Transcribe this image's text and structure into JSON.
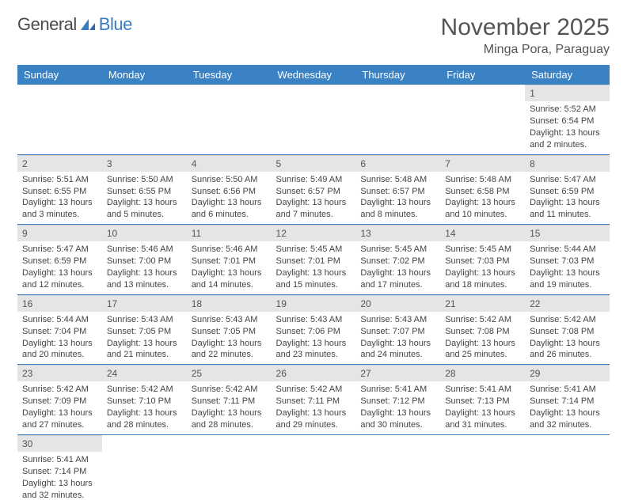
{
  "brand": {
    "part1": "General",
    "part2": "Blue",
    "text_color": "#4a4a4a",
    "accent_color": "#3a7bbf"
  },
  "title": "November 2025",
  "location": "Minga Pora, Paraguay",
  "header_bg": "#3a82c4",
  "header_fg": "#ffffff",
  "daynum_bg": "#e5e5e5",
  "cell_border": "#3a82c4",
  "weekdays": [
    "Sunday",
    "Monday",
    "Tuesday",
    "Wednesday",
    "Thursday",
    "Friday",
    "Saturday"
  ],
  "leading_blanks": 6,
  "days": [
    {
      "n": 1,
      "sunrise": "5:52 AM",
      "sunset": "6:54 PM",
      "daylight": "13 hours and 2 minutes."
    },
    {
      "n": 2,
      "sunrise": "5:51 AM",
      "sunset": "6:55 PM",
      "daylight": "13 hours and 3 minutes."
    },
    {
      "n": 3,
      "sunrise": "5:50 AM",
      "sunset": "6:55 PM",
      "daylight": "13 hours and 5 minutes."
    },
    {
      "n": 4,
      "sunrise": "5:50 AM",
      "sunset": "6:56 PM",
      "daylight": "13 hours and 6 minutes."
    },
    {
      "n": 5,
      "sunrise": "5:49 AM",
      "sunset": "6:57 PM",
      "daylight": "13 hours and 7 minutes."
    },
    {
      "n": 6,
      "sunrise": "5:48 AM",
      "sunset": "6:57 PM",
      "daylight": "13 hours and 8 minutes."
    },
    {
      "n": 7,
      "sunrise": "5:48 AM",
      "sunset": "6:58 PM",
      "daylight": "13 hours and 10 minutes."
    },
    {
      "n": 8,
      "sunrise": "5:47 AM",
      "sunset": "6:59 PM",
      "daylight": "13 hours and 11 minutes."
    },
    {
      "n": 9,
      "sunrise": "5:47 AM",
      "sunset": "6:59 PM",
      "daylight": "13 hours and 12 minutes."
    },
    {
      "n": 10,
      "sunrise": "5:46 AM",
      "sunset": "7:00 PM",
      "daylight": "13 hours and 13 minutes."
    },
    {
      "n": 11,
      "sunrise": "5:46 AM",
      "sunset": "7:01 PM",
      "daylight": "13 hours and 14 minutes."
    },
    {
      "n": 12,
      "sunrise": "5:45 AM",
      "sunset": "7:01 PM",
      "daylight": "13 hours and 15 minutes."
    },
    {
      "n": 13,
      "sunrise": "5:45 AM",
      "sunset": "7:02 PM",
      "daylight": "13 hours and 17 minutes."
    },
    {
      "n": 14,
      "sunrise": "5:45 AM",
      "sunset": "7:03 PM",
      "daylight": "13 hours and 18 minutes."
    },
    {
      "n": 15,
      "sunrise": "5:44 AM",
      "sunset": "7:03 PM",
      "daylight": "13 hours and 19 minutes."
    },
    {
      "n": 16,
      "sunrise": "5:44 AM",
      "sunset": "7:04 PM",
      "daylight": "13 hours and 20 minutes."
    },
    {
      "n": 17,
      "sunrise": "5:43 AM",
      "sunset": "7:05 PM",
      "daylight": "13 hours and 21 minutes."
    },
    {
      "n": 18,
      "sunrise": "5:43 AM",
      "sunset": "7:05 PM",
      "daylight": "13 hours and 22 minutes."
    },
    {
      "n": 19,
      "sunrise": "5:43 AM",
      "sunset": "7:06 PM",
      "daylight": "13 hours and 23 minutes."
    },
    {
      "n": 20,
      "sunrise": "5:43 AM",
      "sunset": "7:07 PM",
      "daylight": "13 hours and 24 minutes."
    },
    {
      "n": 21,
      "sunrise": "5:42 AM",
      "sunset": "7:08 PM",
      "daylight": "13 hours and 25 minutes."
    },
    {
      "n": 22,
      "sunrise": "5:42 AM",
      "sunset": "7:08 PM",
      "daylight": "13 hours and 26 minutes."
    },
    {
      "n": 23,
      "sunrise": "5:42 AM",
      "sunset": "7:09 PM",
      "daylight": "13 hours and 27 minutes."
    },
    {
      "n": 24,
      "sunrise": "5:42 AM",
      "sunset": "7:10 PM",
      "daylight": "13 hours and 28 minutes."
    },
    {
      "n": 25,
      "sunrise": "5:42 AM",
      "sunset": "7:11 PM",
      "daylight": "13 hours and 28 minutes."
    },
    {
      "n": 26,
      "sunrise": "5:42 AM",
      "sunset": "7:11 PM",
      "daylight": "13 hours and 29 minutes."
    },
    {
      "n": 27,
      "sunrise": "5:41 AM",
      "sunset": "7:12 PM",
      "daylight": "13 hours and 30 minutes."
    },
    {
      "n": 28,
      "sunrise": "5:41 AM",
      "sunset": "7:13 PM",
      "daylight": "13 hours and 31 minutes."
    },
    {
      "n": 29,
      "sunrise": "5:41 AM",
      "sunset": "7:14 PM",
      "daylight": "13 hours and 32 minutes."
    },
    {
      "n": 30,
      "sunrise": "5:41 AM",
      "sunset": "7:14 PM",
      "daylight": "13 hours and 32 minutes."
    }
  ],
  "labels": {
    "sunrise": "Sunrise:",
    "sunset": "Sunset:",
    "daylight": "Daylight:"
  }
}
